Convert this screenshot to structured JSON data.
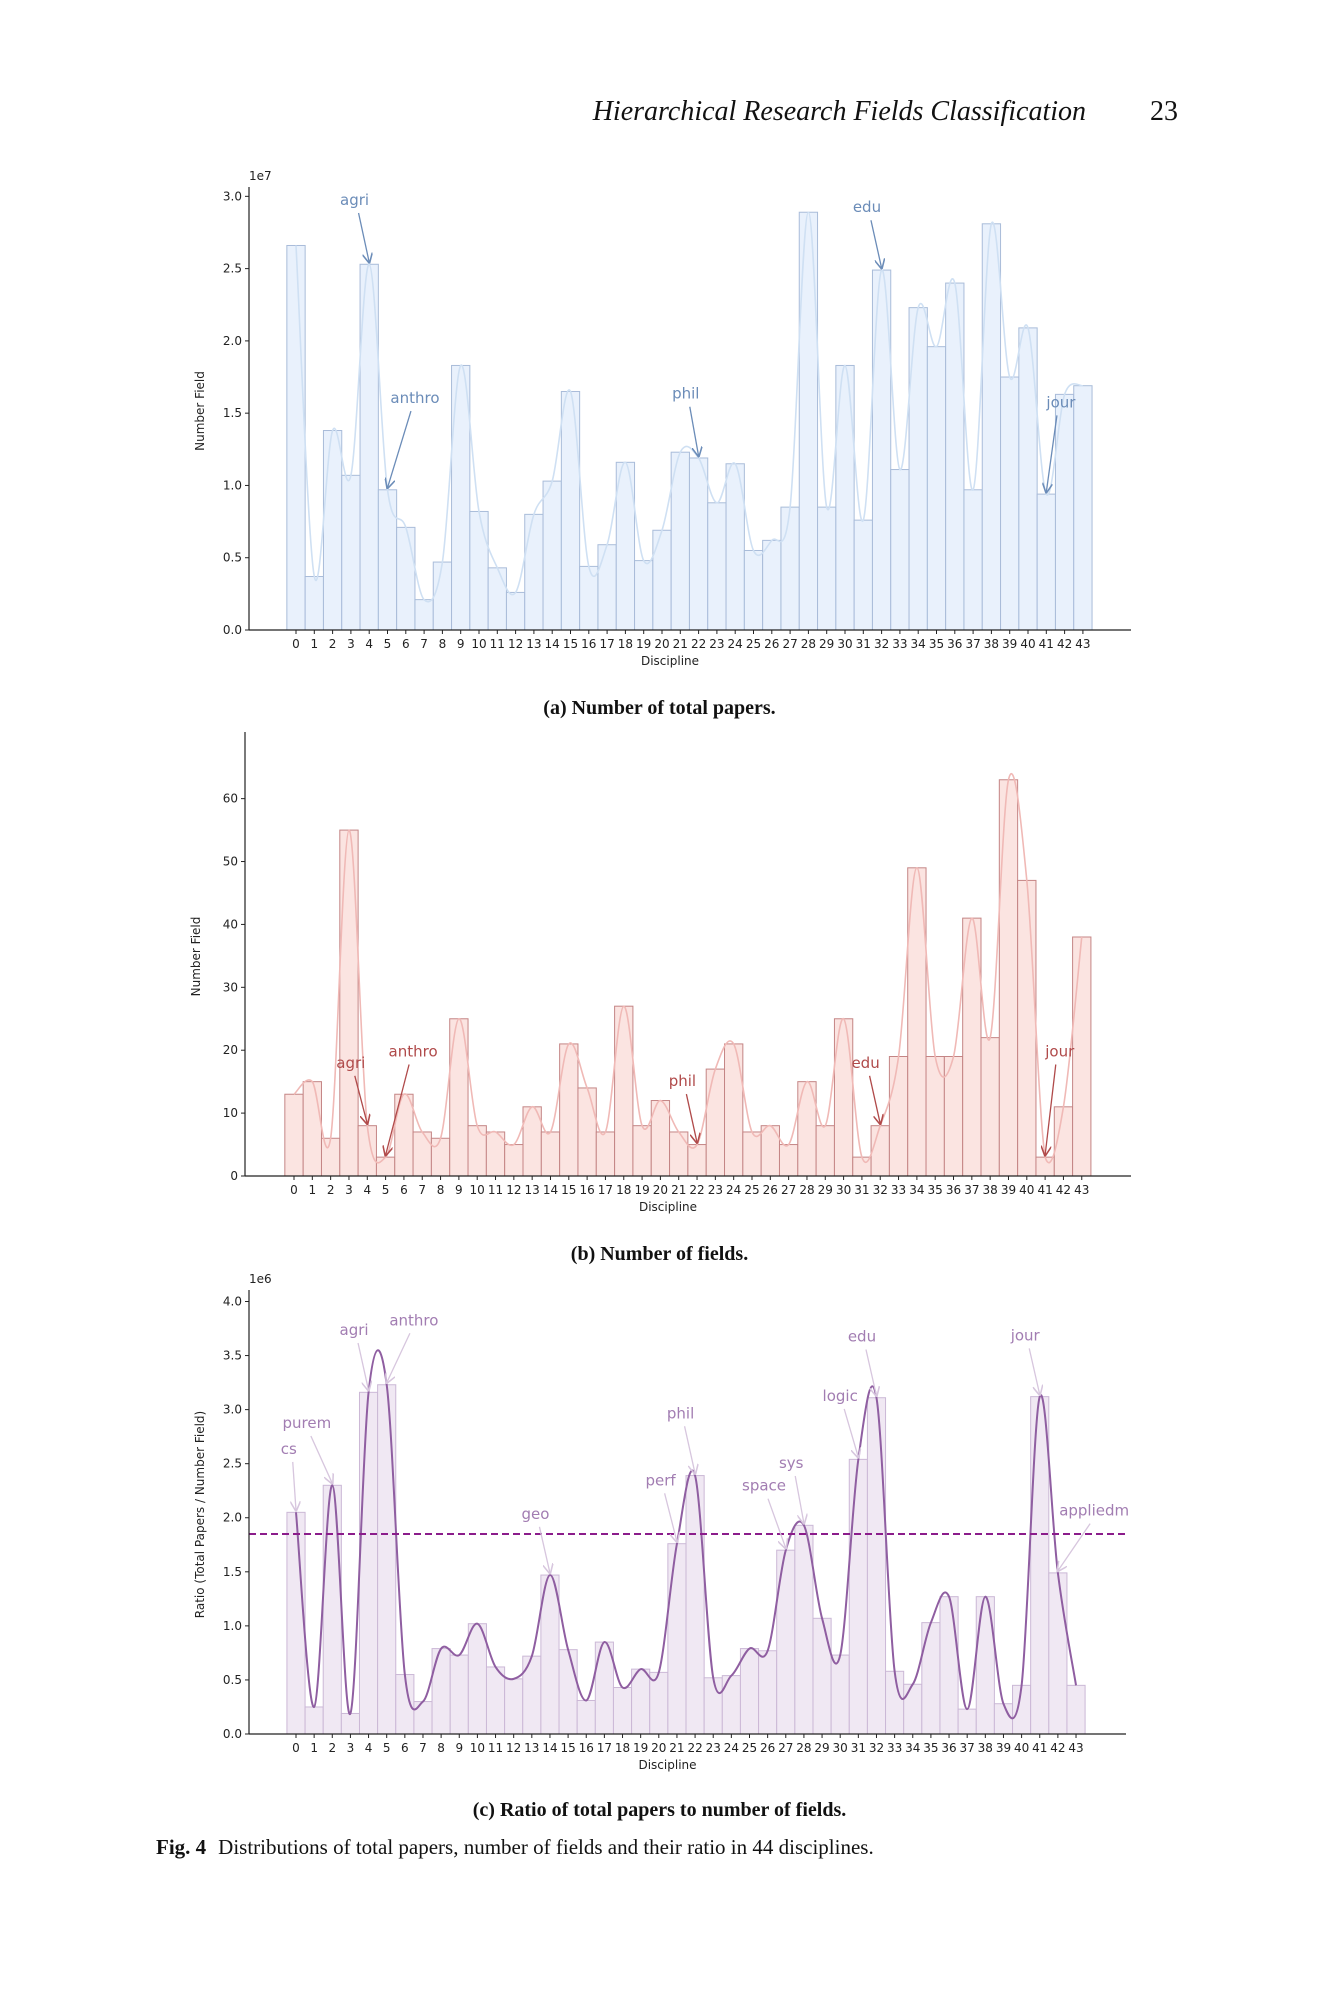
{
  "header": {
    "running_title": "Hierarchical Research Fields Classification",
    "page_number": "23"
  },
  "captions": {
    "a": "(a) Number of total papers.",
    "b": "(b) Number of fields.",
    "c": "(c) Ratio of total papers to number of fields."
  },
  "figure": {
    "label": "Fig. 4",
    "text": "Distributions of total papers, number of fields and their ratio in 44 disciplines."
  },
  "chart_data": [
    {
      "type": "bar",
      "xlabel": "Discipline",
      "ylabel": "Number Field",
      "offset_text": "1e7",
      "scale": 10000000,
      "categories": [
        "0",
        "1",
        "2",
        "3",
        "4",
        "5",
        "6",
        "7",
        "8",
        "9",
        "10",
        "11",
        "12",
        "13",
        "14",
        "15",
        "16",
        "17",
        "18",
        "19",
        "20",
        "21",
        "22",
        "23",
        "24",
        "25",
        "26",
        "27",
        "28",
        "29",
        "30",
        "31",
        "32",
        "33",
        "34",
        "35",
        "36",
        "37",
        "38",
        "39",
        "40",
        "41",
        "42",
        "43"
      ],
      "values": [
        2.66,
        0.37,
        1.38,
        1.07,
        2.53,
        0.97,
        0.71,
        0.21,
        0.47,
        1.83,
        0.82,
        0.43,
        0.26,
        0.8,
        1.03,
        1.65,
        0.44,
        0.59,
        1.16,
        0.48,
        0.69,
        1.23,
        1.19,
        0.88,
        1.15,
        0.55,
        0.62,
        0.85,
        2.89,
        0.85,
        1.83,
        0.76,
        2.49,
        1.11,
        2.23,
        1.96,
        2.4,
        0.97,
        2.81,
        1.75,
        2.09,
        0.94,
        1.63,
        1.69
      ],
      "yticks": [
        "0.0",
        "0.5",
        "1.0",
        "1.5",
        "2.0",
        "2.5",
        "3.0"
      ],
      "ylim": [
        0,
        3.03
      ],
      "xlim": [
        -2.6,
        45.6
      ],
      "smooth_curve": true,
      "colors": {
        "bar_fill": "#e9f1fc",
        "bar_edge": "#a9bcd9",
        "curve": "#cfe0f3",
        "annotation": "#6b8cb8"
      },
      "annotations": [
        {
          "text": "agri",
          "text_at": [
            3.2,
            2.94
          ],
          "target": [
            4,
            2.53
          ]
        },
        {
          "text": "anthro",
          "text_at": [
            6.5,
            1.57
          ],
          "target": [
            5,
            0.97
          ]
        },
        {
          "text": "phil",
          "text_at": [
            21.3,
            1.6
          ],
          "target": [
            22,
            1.19
          ]
        },
        {
          "text": "edu",
          "text_at": [
            31.2,
            2.89
          ],
          "target": [
            32,
            2.49
          ]
        },
        {
          "text": "jour",
          "text_at": [
            41.8,
            1.54
          ],
          "target": [
            41,
            0.94
          ]
        }
      ]
    },
    {
      "type": "bar",
      "xlabel": "Discipline",
      "ylabel": "Number Field",
      "offset_text": "",
      "scale": 1,
      "categories": [
        "0",
        "1",
        "2",
        "3",
        "4",
        "5",
        "6",
        "7",
        "8",
        "9",
        "10",
        "11",
        "12",
        "13",
        "14",
        "15",
        "16",
        "17",
        "18",
        "19",
        "20",
        "21",
        "22",
        "23",
        "24",
        "25",
        "26",
        "27",
        "28",
        "29",
        "30",
        "31",
        "32",
        "33",
        "34",
        "35",
        "36",
        "37",
        "38",
        "39",
        "40",
        "41",
        "42",
        "43"
      ],
      "values": [
        13,
        15,
        6,
        55,
        8,
        3,
        13,
        7,
        6,
        25,
        8,
        7,
        5,
        11,
        7,
        21,
        14,
        7,
        27,
        8,
        12,
        7,
        5,
        17,
        21,
        7,
        8,
        5,
        15,
        8,
        25,
        3,
        8,
        19,
        49,
        19,
        19,
        41,
        22,
        63,
        47,
        3,
        11,
        38
      ],
      "yticks": [
        "0",
        "10",
        "20",
        "30",
        "40",
        "50",
        "60"
      ],
      "ylim": [
        0,
        69.8
      ],
      "xlim": [
        -2.67,
        45.7
      ],
      "smooth_curve": true,
      "colors": {
        "bar_fill": "#fbe4e1",
        "bar_edge": "#c48585",
        "curve": "#f0b9b6",
        "annotation": "#b04a4a"
      },
      "annotations": [
        {
          "text": "agri",
          "text_at": [
            3.1,
            17.2
          ],
          "target": [
            4,
            8
          ]
        },
        {
          "text": "anthro",
          "text_at": [
            6.5,
            19
          ],
          "target": [
            5,
            3
          ]
        },
        {
          "text": "phil",
          "text_at": [
            21.2,
            14.3
          ],
          "target": [
            22,
            5
          ]
        },
        {
          "text": "edu",
          "text_at": [
            31.2,
            17.2
          ],
          "target": [
            32,
            8
          ]
        },
        {
          "text": "jour",
          "text_at": [
            41.8,
            19
          ],
          "target": [
            41,
            3
          ]
        }
      ]
    },
    {
      "type": "bar",
      "xlabel": "Discipline",
      "ylabel": "Ratio (Total Papers / Number Field)",
      "offset_text": "1e6",
      "scale": 1000000,
      "categories": [
        "0",
        "1",
        "2",
        "3",
        "4",
        "5",
        "6",
        "7",
        "8",
        "9",
        "10",
        "11",
        "12",
        "13",
        "14",
        "15",
        "16",
        "17",
        "18",
        "19",
        "20",
        "21",
        "22",
        "23",
        "24",
        "25",
        "26",
        "27",
        "28",
        "29",
        "30",
        "31",
        "32",
        "33",
        "34",
        "35",
        "36",
        "37",
        "38",
        "39",
        "40",
        "41",
        "42",
        "43"
      ],
      "values": [
        2.05,
        0.25,
        2.3,
        0.19,
        3.16,
        3.23,
        0.55,
        0.3,
        0.79,
        0.73,
        1.02,
        0.62,
        0.51,
        0.72,
        1.47,
        0.78,
        0.31,
        0.85,
        0.43,
        0.6,
        0.57,
        1.76,
        2.39,
        0.52,
        0.54,
        0.79,
        0.77,
        1.7,
        1.93,
        1.07,
        0.73,
        2.54,
        3.11,
        0.58,
        0.46,
        1.03,
        1.27,
        0.23,
        1.27,
        0.28,
        0.45,
        3.12,
        1.49,
        0.45
      ],
      "yticks": [
        "0.0",
        "0.5",
        "1.0",
        "1.5",
        "2.0",
        "2.5",
        "3.0",
        "3.5",
        "4.0"
      ],
      "ylim": [
        0,
        4.06
      ],
      "xlim": [
        -2.6,
        45.7
      ],
      "smooth_curve": true,
      "reference_line": {
        "value": 1.85,
        "style": "dashed"
      },
      "colors": {
        "bar_fill": "#f0e8f3",
        "bar_edge": "#cbb8d6",
        "curve": "#8f5ea1",
        "annotation": "#a27db2",
        "reference_line": "#8b1c8b"
      },
      "annotations": [
        {
          "text": "cs",
          "text_at": [
            -0.4,
            2.59
          ],
          "target": [
            0,
            2.05
          ]
        },
        {
          "text": "purem",
          "text_at": [
            0.6,
            2.83
          ],
          "target": [
            2,
            2.3
          ]
        },
        {
          "text": "agri",
          "text_at": [
            3.2,
            3.69
          ],
          "target": [
            4,
            3.16
          ]
        },
        {
          "text": "anthro",
          "text_at": [
            6.5,
            3.78
          ],
          "target": [
            5,
            3.23
          ]
        },
        {
          "text": "geo",
          "text_at": [
            13.2,
            1.99
          ],
          "target": [
            14,
            1.47
          ]
        },
        {
          "text": "perf",
          "text_at": [
            20.1,
            2.3
          ],
          "target": [
            21,
            1.76
          ]
        },
        {
          "text": "phil",
          "text_at": [
            21.2,
            2.92
          ],
          "target": [
            22,
            2.39
          ]
        },
        {
          "text": "space",
          "text_at": [
            25.8,
            2.25
          ],
          "target": [
            27,
            1.7
          ]
        },
        {
          "text": "sys",
          "text_at": [
            27.3,
            2.46
          ],
          "target": [
            28,
            1.93
          ]
        },
        {
          "text": "logic",
          "text_at": [
            30.0,
            3.08
          ],
          "target": [
            31,
            2.54
          ]
        },
        {
          "text": "edu",
          "text_at": [
            31.2,
            3.63
          ],
          "target": [
            32,
            3.11
          ]
        },
        {
          "text": "jour",
          "text_at": [
            40.2,
            3.64
          ],
          "target": [
            41,
            3.12
          ]
        },
        {
          "text": "appliedm",
          "text_at": [
            44.0,
            2.02
          ],
          "target": [
            42,
            1.49
          ]
        }
      ]
    }
  ]
}
